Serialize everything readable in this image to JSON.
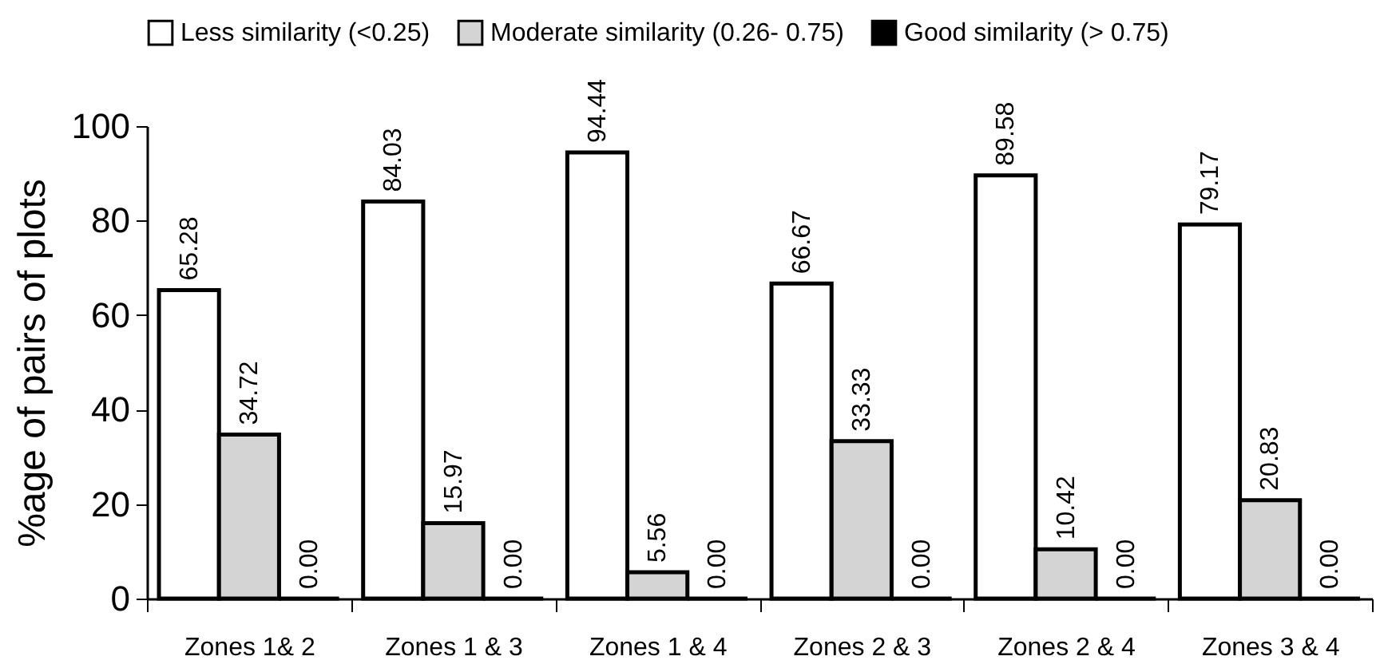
{
  "chart_data": {
    "type": "bar",
    "ylabel": "%age of pairs of plots",
    "categories": [
      "Zones 1& 2",
      "Zones 1 & 3",
      "Zones 1 & 4",
      "Zones 2 & 3",
      "Zones 2 & 4",
      "Zones 3 & 4"
    ],
    "series": [
      {
        "name": "Less similarity (<0.25)",
        "color": "#ffffff",
        "values": [
          65.28,
          84.03,
          94.44,
          66.67,
          89.58,
          79.17
        ],
        "value_labels": [
          "65.28",
          "84.03",
          "94.44",
          "66.67",
          "89.58",
          "79.17"
        ]
      },
      {
        "name": "Moderate similarity (0.26- 0.75)",
        "color": "#d4d4d4",
        "values": [
          34.72,
          15.97,
          5.56,
          33.33,
          10.42,
          20.83
        ],
        "value_labels": [
          "34.72",
          "15.97",
          "5.56",
          "33.33",
          "10.42",
          "20.83"
        ]
      },
      {
        "name": "Good similarity (> 0.75)",
        "color": "#000000",
        "values": [
          0,
          0,
          0,
          0,
          0,
          0
        ],
        "value_labels": [
          "0.00",
          "0.00",
          "0.00",
          "0.00",
          "0.00",
          "0.00"
        ]
      }
    ],
    "ylim": [
      0,
      100
    ],
    "yticks": [
      0,
      20,
      40,
      60,
      80,
      100
    ],
    "legend": "top"
  }
}
